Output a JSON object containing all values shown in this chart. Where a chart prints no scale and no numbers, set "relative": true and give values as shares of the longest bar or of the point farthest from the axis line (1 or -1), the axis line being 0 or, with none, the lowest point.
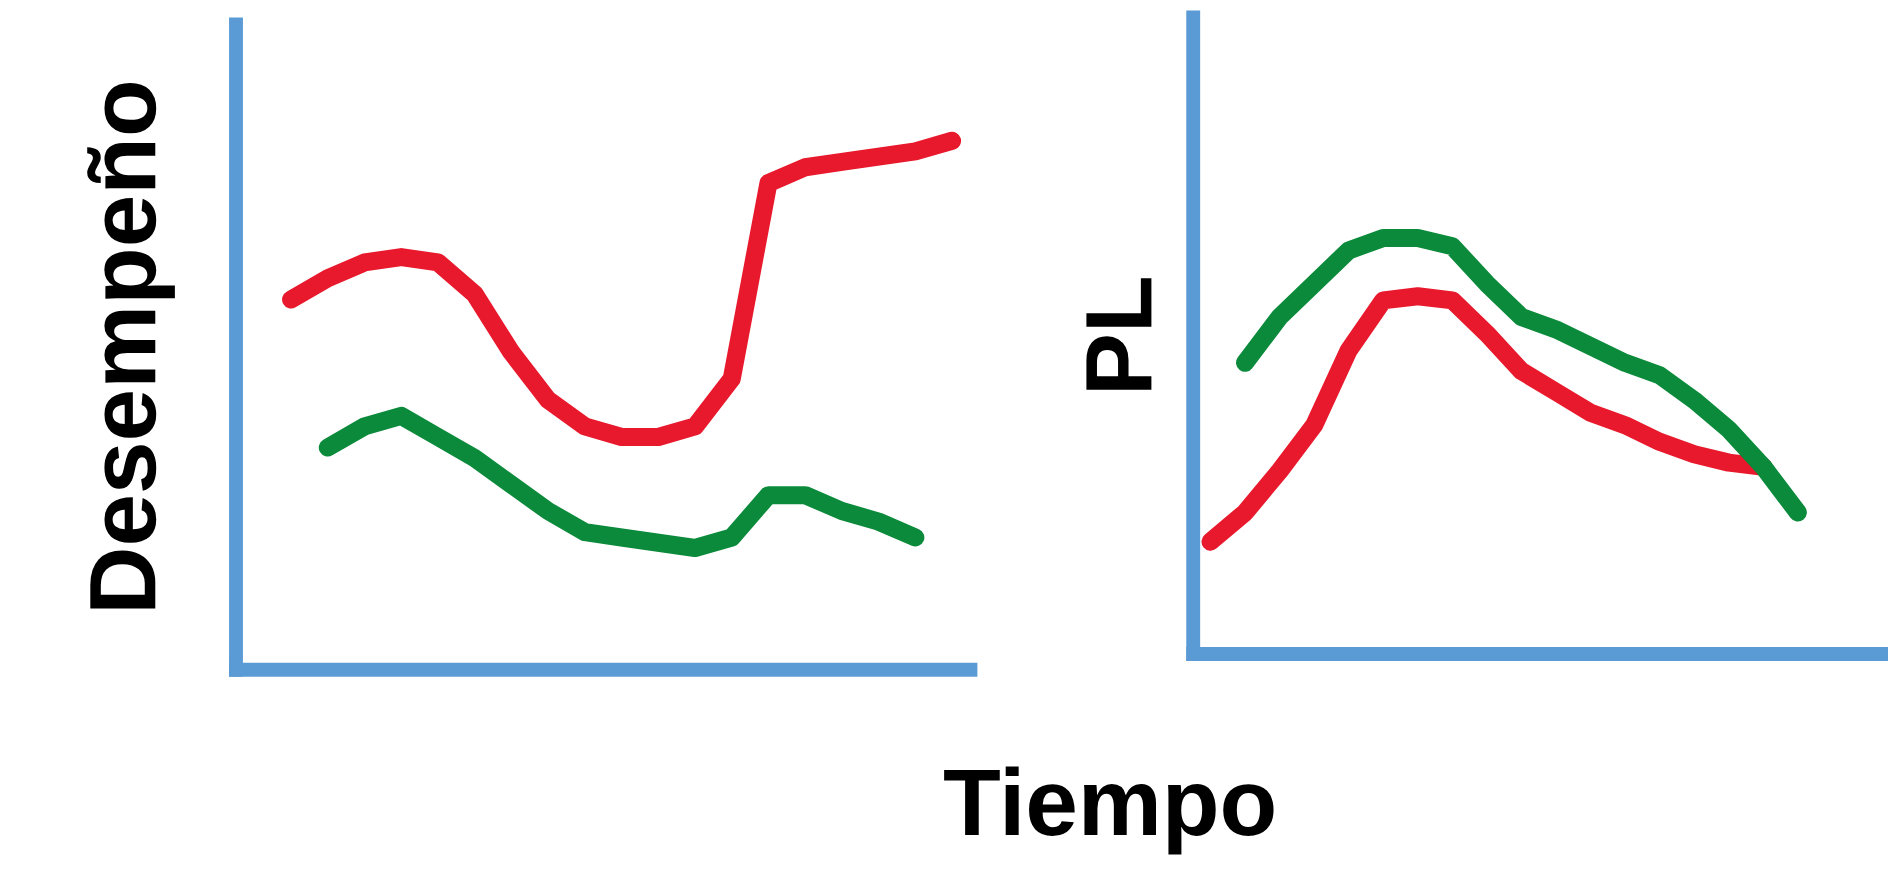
{
  "chart_data": [
    {
      "type": "line",
      "ylabel": "Desempeño",
      "relative": true,
      "legend": false,
      "grid": false,
      "marker": "none",
      "line_style": "solid",
      "categories": [
        null,
        null,
        null,
        null,
        null,
        null,
        null,
        null,
        null,
        null,
        null,
        null,
        null,
        null,
        null,
        null,
        null,
        null,
        null,
        null
      ],
      "series": [
        {
          "color": "#e8192c",
          "values": [
            null,
            0.7,
            0.74,
            0.77,
            0.78,
            0.77,
            0.71,
            0.6,
            0.51,
            0.46,
            0.44,
            0.44,
            0.46,
            0.55,
            0.92,
            0.95,
            0.96,
            0.97,
            0.98,
            1.0
          ]
        },
        {
          "color": "#0a8a3a",
          "values": [
            null,
            null,
            0.42,
            0.46,
            0.48,
            0.44,
            0.4,
            0.35,
            0.3,
            0.26,
            0.25,
            0.24,
            0.23,
            0.25,
            0.33,
            0.33,
            0.3,
            0.28,
            0.25,
            null
          ]
        }
      ]
    },
    {
      "type": "line",
      "ylabel": "PL",
      "xlabel": "Tiempo",
      "relative": true,
      "legend": false,
      "grid": false,
      "marker": "none",
      "line_style": "solid",
      "categories": [
        null,
        null,
        null,
        null,
        null,
        null,
        null,
        null,
        null,
        null,
        null,
        null,
        null,
        null,
        null,
        null,
        null,
        null,
        null,
        null
      ],
      "series": [
        {
          "color": "#e8192c",
          "values": [
            0.27,
            0.34,
            0.44,
            0.55,
            0.73,
            0.85,
            0.86,
            0.85,
            0.77,
            0.68,
            0.63,
            0.58,
            0.55,
            0.51,
            0.48,
            0.46,
            0.45,
            null,
            null,
            null
          ]
        },
        {
          "color": "#0a8a3a",
          "values": [
            null,
            0.7,
            0.81,
            0.89,
            0.97,
            1.0,
            1.0,
            0.98,
            0.89,
            0.81,
            0.78,
            0.74,
            0.7,
            0.67,
            0.61,
            0.54,
            0.45,
            0.34,
            null,
            null
          ]
        }
      ]
    }
  ]
}
